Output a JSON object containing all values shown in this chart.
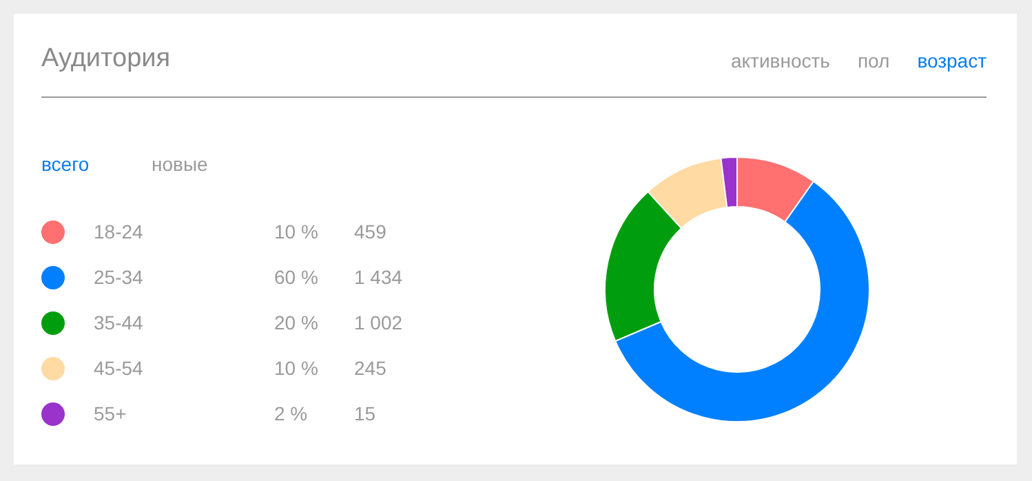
{
  "chart_data": {
    "type": "donut",
    "title": "Аудитория",
    "annotations": [
      "активность",
      "пол",
      "возраст",
      "всего",
      "новые",
      "459",
      "1 434",
      "1 002",
      "245",
      "15"
    ],
    "categories": [
      "18-24",
      "25-34",
      "35-44",
      "45-54",
      "55+"
    ],
    "values": [
      10,
      60,
      20,
      10,
      2
    ],
    "colors": [
      "#ff7070",
      "#0080ff",
      "#009e0f",
      "#ffdaa3",
      "#9933cc"
    ],
    "value_labels": [
      "10 %",
      "60 %",
      "20 %",
      "10 %",
      "2 %"
    ],
    "legend": "left"
  }
}
